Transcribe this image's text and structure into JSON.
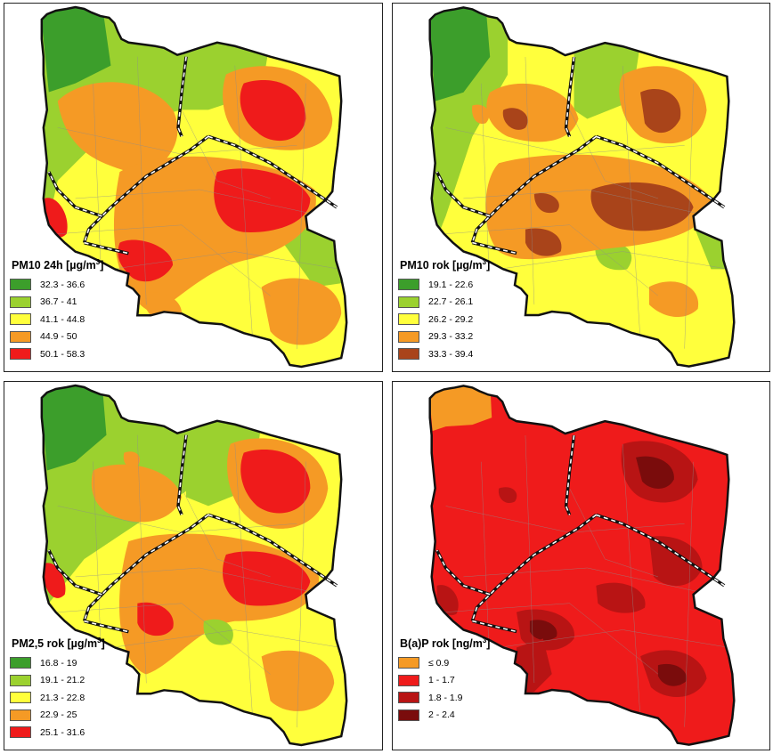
{
  "panels": [
    {
      "title_pre": "PM10 24h [µg/m",
      "title_sup": "3",
      "title_post": "]",
      "legend": [
        {
          "label": "32.3 - 36.6",
          "color": "#3c9e2b"
        },
        {
          "label": "36.7 - 41",
          "color": "#9bd12f"
        },
        {
          "label": "41.1 - 44.8",
          "color": "#ffff3c"
        },
        {
          "label": "44.9 - 50",
          "color": "#f59a25"
        },
        {
          "label": "50.1 - 58.3",
          "color": "#ef1b1b"
        }
      ]
    },
    {
      "title_pre": "PM10 rok [µg/m",
      "title_sup": "3",
      "title_post": "]",
      "legend": [
        {
          "label": "19.1 - 22.6",
          "color": "#3c9e2b"
        },
        {
          "label": "22.7 - 26.1",
          "color": "#9bd12f"
        },
        {
          "label": "26.2 - 29.2",
          "color": "#ffff3c"
        },
        {
          "label": "29.3 - 33.2",
          "color": "#f59a25"
        },
        {
          "label": "33.3 - 39.4",
          "color": "#a9441a"
        }
      ]
    },
    {
      "title_pre": "PM2,5 rok [µg/m",
      "title_sup": "3",
      "title_post": "]",
      "legend": [
        {
          "label": "16.8 - 19",
          "color": "#3c9e2b"
        },
        {
          "label": "19.1 - 21.2",
          "color": "#9bd12f"
        },
        {
          "label": "21.3 - 22.8",
          "color": "#ffff3c"
        },
        {
          "label": "22.9 - 25",
          "color": "#f59a25"
        },
        {
          "label": "25.1 - 31.6",
          "color": "#ef1b1b"
        }
      ]
    },
    {
      "title_pre": "B(a)P rok [ng/m",
      "title_sup": "3",
      "title_post": "]",
      "legend": [
        {
          "label": "≤ 0.9",
          "color": "#f59a25"
        },
        {
          "label": "1 - 1.7",
          "color": "#ef1b1b"
        },
        {
          "label": "1.8 - 1.9",
          "color": "#b81414"
        },
        {
          "label": "2 - 2.4",
          "color": "#7a0c0c"
        }
      ]
    }
  ]
}
